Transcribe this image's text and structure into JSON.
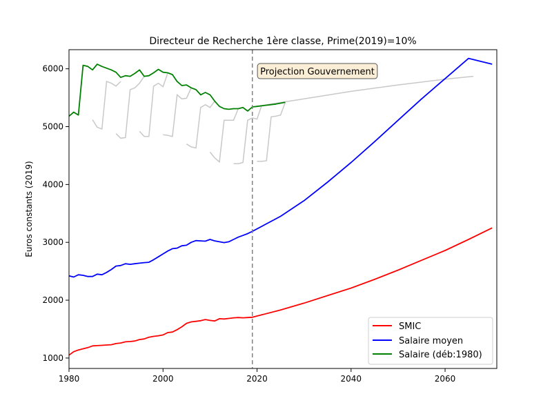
{
  "chart_data": {
    "type": "line",
    "title": "Directeur de Recherche 1ère classe, Prime(2019)=10%",
    "xlabel": "",
    "ylabel": "Euros constants (2019)",
    "xlim": [
      1980,
      2071
    ],
    "ylim": [
      820,
      6330
    ],
    "xticks": [
      1980,
      2000,
      2020,
      2040,
      2060
    ],
    "yticks": [
      1000,
      2000,
      3000,
      4000,
      5000,
      6000
    ],
    "grid": false,
    "legend_position": "bottom-right",
    "annotation": {
      "text": "Projection Gouvernement",
      "x": 2019.5,
      "y": 5960
    },
    "vline": {
      "x": 2019,
      "style": "dashed",
      "color": "#808080"
    },
    "colors": {
      "smic": "#ff0000",
      "moyen": "#0000ff",
      "deb1980": "#008000",
      "other": "#c8c8c8"
    },
    "series": [
      {
        "name": "SMIC",
        "points": [
          [
            1980,
            1050
          ],
          [
            1981,
            1110
          ],
          [
            1982,
            1140
          ],
          [
            1983,
            1160
          ],
          [
            1984,
            1180
          ],
          [
            1985,
            1210
          ],
          [
            1986,
            1215
          ],
          [
            1987,
            1220
          ],
          [
            1988,
            1225
          ],
          [
            1989,
            1230
          ],
          [
            1990,
            1250
          ],
          [
            1991,
            1260
          ],
          [
            1992,
            1280
          ],
          [
            1993,
            1285
          ],
          [
            1994,
            1295
          ],
          [
            1995,
            1320
          ],
          [
            1996,
            1330
          ],
          [
            1997,
            1360
          ],
          [
            1998,
            1375
          ],
          [
            1999,
            1385
          ],
          [
            2000,
            1400
          ],
          [
            2001,
            1440
          ],
          [
            2002,
            1450
          ],
          [
            2003,
            1490
          ],
          [
            2004,
            1540
          ],
          [
            2005,
            1600
          ],
          [
            2006,
            1625
          ],
          [
            2007,
            1635
          ],
          [
            2008,
            1645
          ],
          [
            2009,
            1665
          ],
          [
            2010,
            1650
          ],
          [
            2011,
            1640
          ],
          [
            2012,
            1680
          ],
          [
            2013,
            1675
          ],
          [
            2014,
            1685
          ],
          [
            2015,
            1695
          ],
          [
            2016,
            1700
          ],
          [
            2017,
            1695
          ],
          [
            2018,
            1700
          ],
          [
            2019,
            1705
          ],
          [
            2025,
            1830
          ],
          [
            2030,
            1950
          ],
          [
            2035,
            2080
          ],
          [
            2040,
            2210
          ],
          [
            2045,
            2360
          ],
          [
            2050,
            2520
          ],
          [
            2055,
            2690
          ],
          [
            2060,
            2860
          ],
          [
            2065,
            3050
          ],
          [
            2070,
            3250
          ]
        ]
      },
      {
        "name": "Salaire moyen",
        "points": [
          [
            1980,
            2420
          ],
          [
            1981,
            2400
          ],
          [
            1982,
            2440
          ],
          [
            1983,
            2430
          ],
          [
            1984,
            2410
          ],
          [
            1985,
            2410
          ],
          [
            1986,
            2450
          ],
          [
            1987,
            2440
          ],
          [
            1988,
            2480
          ],
          [
            1989,
            2530
          ],
          [
            1990,
            2590
          ],
          [
            1991,
            2600
          ],
          [
            1992,
            2630
          ],
          [
            1993,
            2620
          ],
          [
            1994,
            2630
          ],
          [
            1995,
            2640
          ],
          [
            1996,
            2650
          ],
          [
            1997,
            2655
          ],
          [
            1998,
            2700
          ],
          [
            1999,
            2750
          ],
          [
            2000,
            2800
          ],
          [
            2001,
            2850
          ],
          [
            2002,
            2890
          ],
          [
            2003,
            2900
          ],
          [
            2004,
            2940
          ],
          [
            2005,
            2950
          ],
          [
            2006,
            3000
          ],
          [
            2007,
            3030
          ],
          [
            2008,
            3025
          ],
          [
            2009,
            3020
          ],
          [
            2010,
            3050
          ],
          [
            2011,
            3025
          ],
          [
            2012,
            3010
          ],
          [
            2013,
            2995
          ],
          [
            2014,
            3010
          ],
          [
            2015,
            3050
          ],
          [
            2016,
            3090
          ],
          [
            2017,
            3120
          ],
          [
            2018,
            3150
          ],
          [
            2019,
            3190
          ],
          [
            2025,
            3450
          ],
          [
            2030,
            3720
          ],
          [
            2035,
            4040
          ],
          [
            2040,
            4380
          ],
          [
            2045,
            4740
          ],
          [
            2050,
            5110
          ],
          [
            2055,
            5480
          ],
          [
            2060,
            5830
          ],
          [
            2065,
            6180
          ],
          [
            2070,
            6080
          ]
        ]
      },
      {
        "name": "Salaire (déb:1980)",
        "points": [
          [
            1980,
            5180
          ],
          [
            1981,
            5250
          ],
          [
            1982,
            5200
          ],
          [
            1983,
            6060
          ],
          [
            1984,
            6040
          ],
          [
            1985,
            5980
          ],
          [
            1986,
            6080
          ],
          [
            1987,
            6040
          ],
          [
            1988,
            6010
          ],
          [
            1989,
            5980
          ],
          [
            1990,
            5940
          ],
          [
            1991,
            5850
          ],
          [
            1992,
            5880
          ],
          [
            1993,
            5870
          ],
          [
            1994,
            5920
          ],
          [
            1995,
            5980
          ],
          [
            1996,
            5870
          ],
          [
            1997,
            5880
          ],
          [
            1998,
            5930
          ],
          [
            1999,
            5990
          ],
          [
            2000,
            5940
          ],
          [
            2001,
            5930
          ],
          [
            2002,
            5900
          ],
          [
            2003,
            5780
          ],
          [
            2004,
            5710
          ],
          [
            2005,
            5720
          ],
          [
            2006,
            5670
          ],
          [
            2007,
            5640
          ],
          [
            2008,
            5550
          ],
          [
            2009,
            5590
          ],
          [
            2010,
            5550
          ],
          [
            2011,
            5440
          ],
          [
            2012,
            5350
          ],
          [
            2013,
            5310
          ],
          [
            2014,
            5300
          ],
          [
            2015,
            5310
          ],
          [
            2016,
            5310
          ],
          [
            2017,
            5330
          ],
          [
            2018,
            5270
          ],
          [
            2019,
            5340
          ],
          [
            2020,
            5350
          ],
          [
            2022,
            5370
          ],
          [
            2024,
            5390
          ],
          [
            2026,
            5420
          ]
        ]
      }
    ],
    "background_series": [
      [
        [
          1985,
          5120
        ],
        [
          1986,
          4990
        ],
        [
          1987,
          4960
        ],
        [
          1988,
          5780
        ],
        [
          1989,
          5750
        ],
        [
          1990,
          5700
        ],
        [
          1991,
          5780
        ]
      ],
      [
        [
          1990,
          4880
        ],
        [
          1991,
          4800
        ],
        [
          1992,
          4810
        ],
        [
          1993,
          5640
        ],
        [
          1994,
          5670
        ],
        [
          1995,
          5750
        ],
        [
          1996,
          5870
        ]
      ],
      [
        [
          1995,
          4920
        ],
        [
          1996,
          4830
        ],
        [
          1997,
          4830
        ],
        [
          1998,
          5700
        ],
        [
          1999,
          5750
        ],
        [
          2000,
          5690
        ],
        [
          2001,
          5930
        ]
      ],
      [
        [
          2000,
          4860
        ],
        [
          2001,
          4850
        ],
        [
          2002,
          4830
        ],
        [
          2003,
          5550
        ],
        [
          2004,
          5480
        ],
        [
          2005,
          5490
        ],
        [
          2006,
          5670
        ]
      ],
      [
        [
          2005,
          4700
        ],
        [
          2006,
          4650
        ],
        [
          2007,
          4630
        ],
        [
          2008,
          5330
        ],
        [
          2009,
          5380
        ],
        [
          2010,
          5330
        ],
        [
          2011,
          5440
        ]
      ],
      [
        [
          2010,
          4560
        ],
        [
          2011,
          4460
        ],
        [
          2012,
          4390
        ],
        [
          2013,
          5110
        ],
        [
          2014,
          5110
        ],
        [
          2015,
          5110
        ],
        [
          2016,
          5310
        ]
      ],
      [
        [
          2015,
          4360
        ],
        [
          2016,
          4360
        ],
        [
          2017,
          4380
        ],
        [
          2018,
          5110
        ],
        [
          2019,
          5150
        ],
        [
          2020,
          5130
        ],
        [
          2021,
          5370
        ]
      ],
      [
        [
          2020,
          4400
        ],
        [
          2021,
          4400
        ],
        [
          2022,
          4410
        ],
        [
          2023,
          5170
        ],
        [
          2024,
          5180
        ],
        [
          2025,
          5200
        ],
        [
          2026,
          5420
        ]
      ],
      [
        [
          2019,
          5340
        ],
        [
          2030,
          5480
        ],
        [
          2040,
          5610
        ],
        [
          2050,
          5720
        ],
        [
          2060,
          5820
        ],
        [
          2066,
          5870
        ]
      ]
    ]
  }
}
